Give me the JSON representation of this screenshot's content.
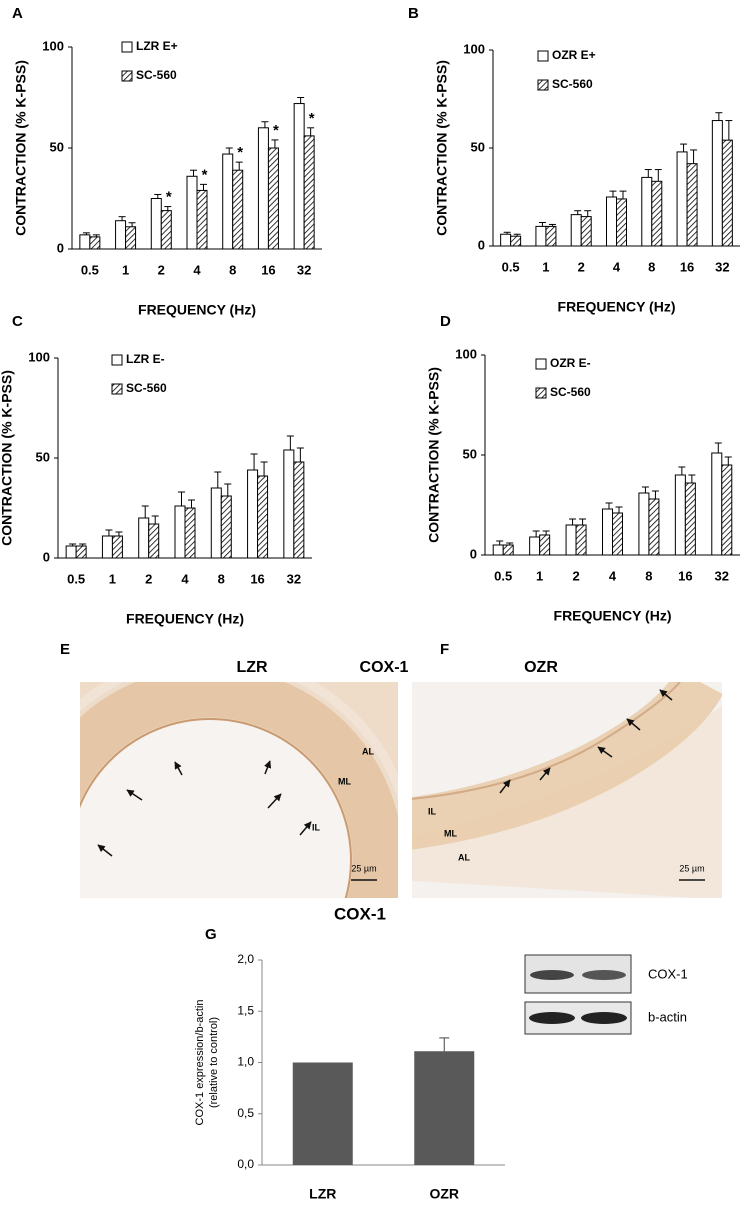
{
  "chart_data": [
    {
      "type": "bar",
      "panel": "A",
      "categories": [
        "0.5",
        "1",
        "2",
        "4",
        "8",
        "16",
        "32"
      ],
      "series": [
        {
          "name": "LZR E+",
          "color": "#ffffff",
          "values": [
            7,
            14,
            25,
            36,
            47,
            60,
            72
          ],
          "errors": [
            1,
            2,
            2,
            3,
            3,
            3,
            3
          ]
        },
        {
          "name": "SC-560",
          "color": "hatch",
          "values": [
            6,
            11,
            19,
            29,
            39,
            50,
            56
          ],
          "errors": [
            1,
            2,
            2,
            3,
            4,
            4,
            4
          ],
          "markers": [
            null,
            null,
            "*",
            "*",
            "*",
            "*",
            "*"
          ]
        }
      ],
      "ylim": [
        0,
        100
      ],
      "yticks": [
        0,
        50,
        100
      ],
      "xlabel": "FREQUENCY (Hz)",
      "ylabel": "CONTRACTION (% K-PSS)"
    },
    {
      "type": "bar",
      "panel": "B",
      "categories": [
        "0.5",
        "1",
        "2",
        "4",
        "8",
        "16",
        "32"
      ],
      "series": [
        {
          "name": "OZR E+",
          "color": "#ffffff",
          "values": [
            6,
            10,
            16,
            25,
            35,
            48,
            64
          ],
          "errors": [
            1,
            2,
            2,
            3,
            4,
            4,
            4
          ]
        },
        {
          "name": "SC-560",
          "color": "hatch",
          "values": [
            5,
            10,
            15,
            24,
            33,
            42,
            54
          ],
          "errors": [
            1,
            1,
            3,
            4,
            6,
            7,
            10
          ]
        }
      ],
      "ylim": [
        0,
        100
      ],
      "yticks": [
        0,
        50,
        100
      ],
      "xlabel": "FREQUENCY (Hz)",
      "ylabel": "CONTRACTION (% K-PSS)"
    },
    {
      "type": "bar",
      "panel": "C",
      "categories": [
        "0.5",
        "1",
        "2",
        "4",
        "8",
        "16",
        "32"
      ],
      "series": [
        {
          "name": "LZR E-",
          "color": "#ffffff",
          "values": [
            6,
            11,
            20,
            26,
            35,
            44,
            54
          ],
          "errors": [
            1,
            3,
            6,
            7,
            8,
            8,
            7
          ]
        },
        {
          "name": "SC-560",
          "color": "hatch",
          "values": [
            6,
            11,
            17,
            25,
            31,
            41,
            48
          ],
          "errors": [
            1,
            2,
            4,
            4,
            6,
            7,
            7
          ]
        }
      ],
      "ylim": [
        0,
        100
      ],
      "yticks": [
        0,
        50,
        100
      ],
      "xlabel": "FREQUENCY (Hz)",
      "ylabel": "CONTRACTION (% K-PSS)"
    },
    {
      "type": "bar",
      "panel": "D",
      "categories": [
        "0.5",
        "1",
        "2",
        "4",
        "8",
        "16",
        "32"
      ],
      "series": [
        {
          "name": "OZR E-",
          "color": "#ffffff",
          "values": [
            5,
            9,
            15,
            23,
            31,
            40,
            51
          ],
          "errors": [
            2,
            3,
            3,
            3,
            3,
            4,
            5
          ]
        },
        {
          "name": "SC-560",
          "color": "hatch",
          "values": [
            5,
            10,
            15,
            21,
            28,
            36,
            45
          ],
          "errors": [
            1,
            2,
            3,
            3,
            4,
            4,
            4
          ]
        }
      ],
      "ylim": [
        0,
        100
      ],
      "yticks": [
        0,
        50,
        100
      ],
      "xlabel": "FREQUENCY (Hz)",
      "ylabel": "CONTRACTION (% K-PSS)"
    },
    {
      "type": "bar",
      "panel": "G",
      "title": "COX-1",
      "categories": [
        "LZR",
        "OZR"
      ],
      "values": [
        1.0,
        1.11
      ],
      "errors": [
        null,
        0.13
      ],
      "color": "#595959",
      "ylim": [
        0,
        2
      ],
      "yticks": [
        {
          "value": 0,
          "label": "0,0"
        },
        {
          "value": 0.5,
          "label": "0,5"
        },
        {
          "value": 1,
          "label": "1,0"
        },
        {
          "value": 1.5,
          "label": "1,5"
        },
        {
          "value": 2,
          "label": "2,0"
        }
      ],
      "ylabel": [
        "COX-1 expression/b-actin",
        "(relative to control)"
      ]
    }
  ],
  "images": [
    {
      "panel": "E",
      "title": "LZR",
      "stain": "COX-1",
      "labels": [
        "AL",
        "ML",
        "IL"
      ],
      "scale": "25 µm"
    },
    {
      "panel": "F",
      "title": "OZR",
      "labels": [
        "IL",
        "ML",
        "AL"
      ],
      "scale": "25 µm"
    }
  ],
  "blot": {
    "labels": [
      "COX-1",
      "b-actin"
    ]
  }
}
